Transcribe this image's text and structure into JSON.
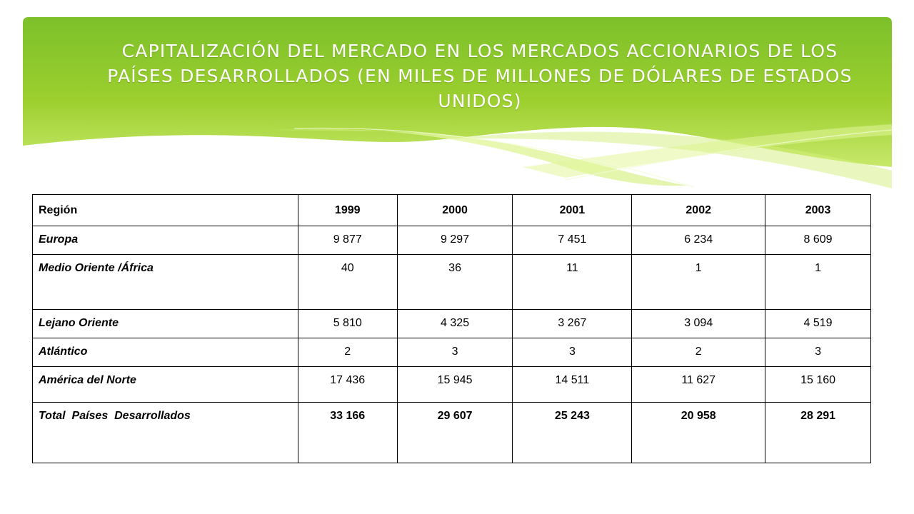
{
  "slide": {
    "title": "CAPITALIZACIÓN DEL MERCADO EN LOS MERCADOS ACCIONARIOS DE LOS PAÍSES DESARROLLADOS (EN MILES DE MILLONES DE DÓLARES DE ESTADOS UNIDOS)",
    "banner_color": "#8cc63f"
  },
  "table": {
    "headers": [
      "Región",
      "1999",
      "2000",
      "2001",
      "2002",
      "2003"
    ],
    "rows": [
      {
        "region": "Europa",
        "values": [
          "9 877",
          "9 297",
          "7 451",
          "6 234",
          "8 609"
        ]
      },
      {
        "region": "Medio Oriente /África",
        "values": [
          "40",
          "36",
          "11",
          "1",
          "1"
        ]
      },
      {
        "region": "Lejano Oriente",
        "values": [
          "5 810",
          "4 325",
          "3 267",
          "3 094",
          "4 519"
        ]
      },
      {
        "region": "Atlántico",
        "values": [
          "2",
          "3",
          "3",
          "2",
          "3"
        ]
      },
      {
        "region": "América del Norte",
        "values": [
          "17 436",
          "15 945",
          "14 511",
          "11 627",
          "15 160"
        ]
      },
      {
        "region": "Total  Países  Desarrollados",
        "values": [
          "33 166",
          "29 607",
          "25 243",
          "20 958",
          "28 291"
        ]
      }
    ]
  }
}
